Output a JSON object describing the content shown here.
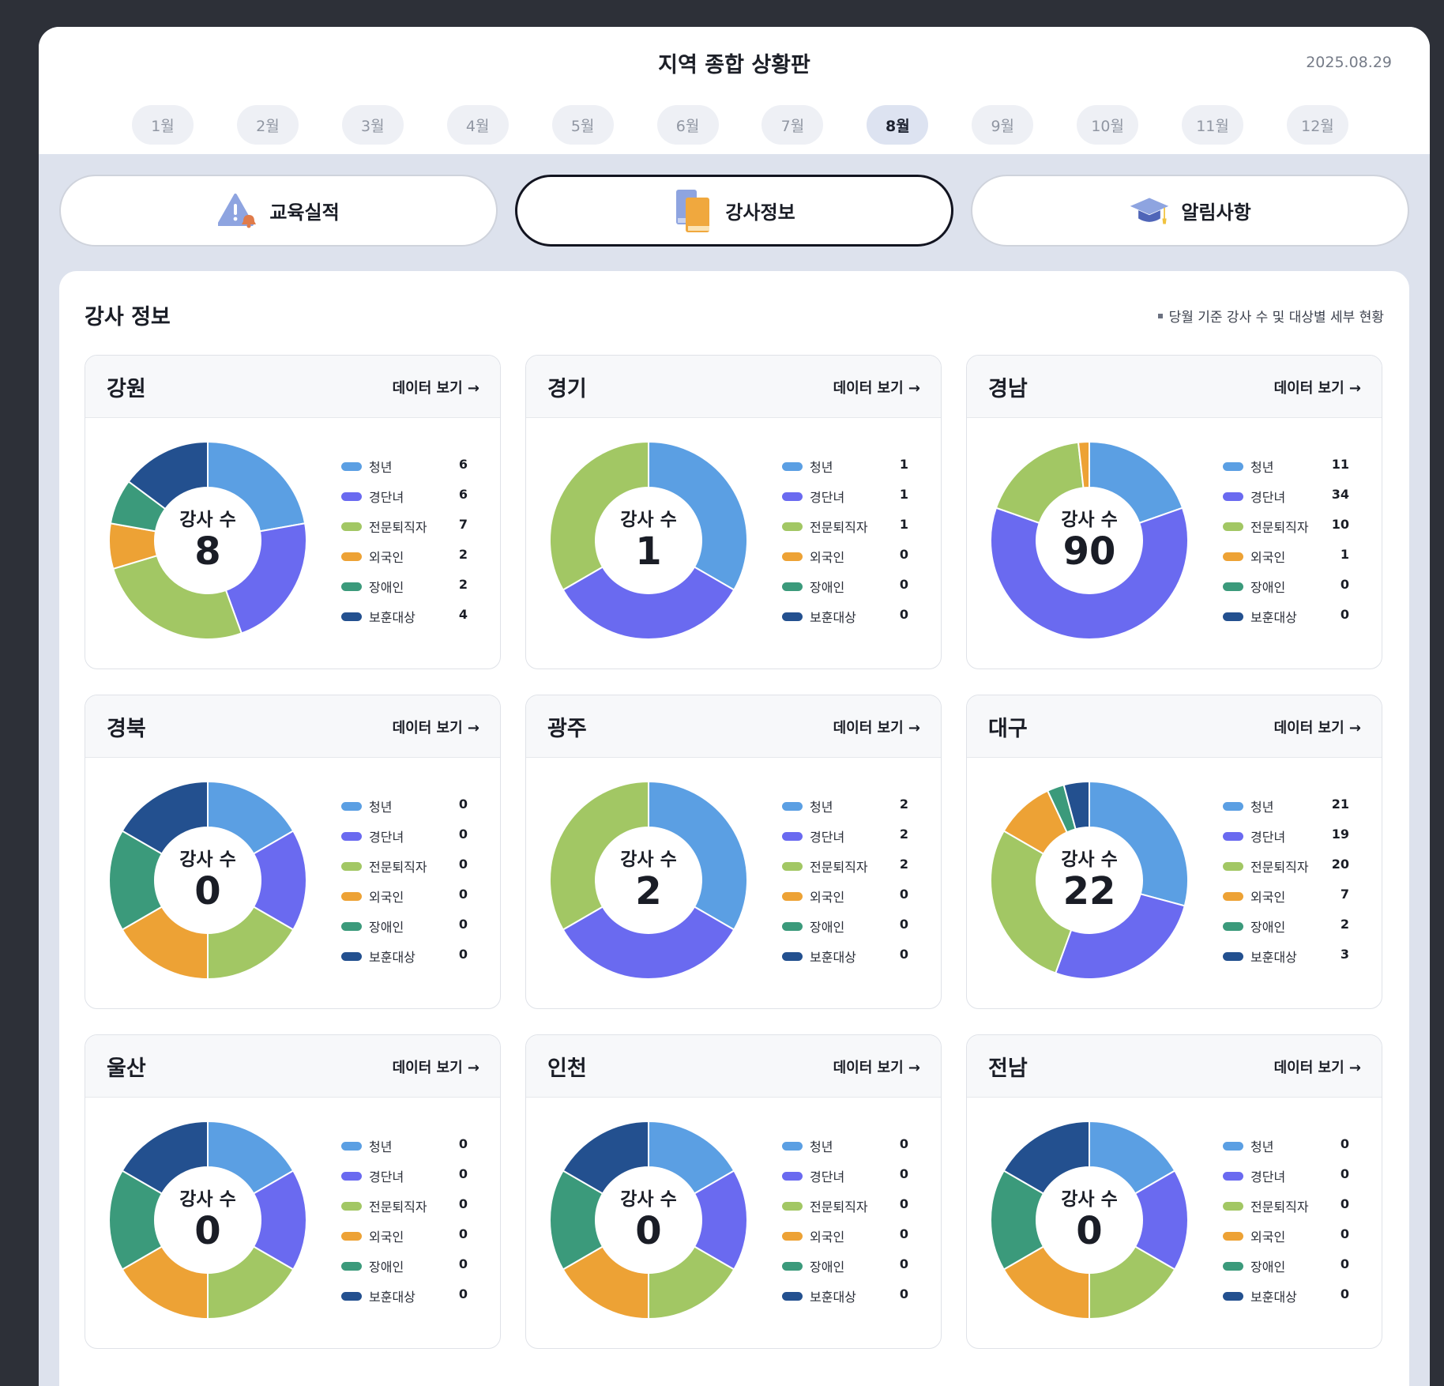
{
  "page": {
    "title": "지역 종합 상황판",
    "date": "2025.08.29"
  },
  "months": [
    "1월",
    "2월",
    "3월",
    "4월",
    "5월",
    "6월",
    "7월",
    "8월",
    "9월",
    "10월",
    "11월",
    "12월"
  ],
  "active_month": "8월",
  "tabs": [
    {
      "label": "교육실적",
      "icon": "warning-bell-icon"
    },
    {
      "label": "강사정보",
      "icon": "books-icon",
      "active": true
    },
    {
      "label": "알림사항",
      "icon": "graduation-cap-icon"
    }
  ],
  "panel": {
    "title": "강사 정보",
    "note": "당월 기준 강사 수 및 대상별 세부 현황"
  },
  "card_link_label": "데이터 보기 →",
  "center_label": "강사 수",
  "categories": [
    "청년",
    "경단녀",
    "전문퇴직자",
    "외국인",
    "장애인",
    "보훈대상"
  ],
  "colors": {
    "청년": "#5b9fe3",
    "경단녀": "#6a6af0",
    "전문퇴직자": "#a2c764",
    "외국인": "#eda235",
    "장애인": "#3b9a7b",
    "보훈대상": "#23508f"
  },
  "regions": [
    {
      "name": "강원",
      "total": "8",
      "values": [
        6,
        6,
        7,
        2,
        2,
        4
      ]
    },
    {
      "name": "경기",
      "total": "1",
      "values": [
        1,
        1,
        1,
        0,
        0,
        0
      ]
    },
    {
      "name": "경남",
      "total": "90",
      "values": [
        11,
        34,
        10,
        1,
        0,
        0
      ]
    },
    {
      "name": "경북",
      "total": "0",
      "values": [
        0,
        0,
        0,
        0,
        0,
        0
      ]
    },
    {
      "name": "광주",
      "total": "2",
      "values": [
        2,
        2,
        2,
        0,
        0,
        0
      ]
    },
    {
      "name": "대구",
      "total": "22",
      "values": [
        21,
        19,
        20,
        7,
        2,
        3
      ]
    },
    {
      "name": "울산",
      "total": "0",
      "values": [
        0,
        0,
        0,
        0,
        0,
        0
      ]
    },
    {
      "name": "인천",
      "total": "0",
      "values": [
        0,
        0,
        0,
        0,
        0,
        0
      ]
    },
    {
      "name": "전남",
      "total": "0",
      "values": [
        0,
        0,
        0,
        0,
        0,
        0
      ]
    }
  ]
}
